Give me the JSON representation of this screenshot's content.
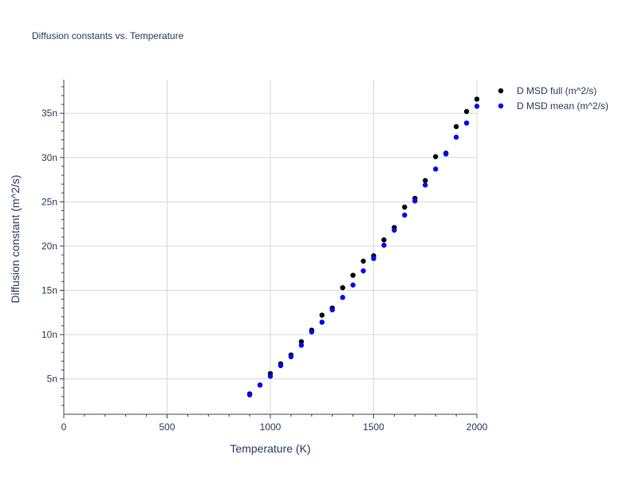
{
  "chart_data": {
    "type": "scatter",
    "title": "Diffusion constants vs. Temperature",
    "xlabel": "Temperature (K)",
    "ylabel": "Diffusion constant (m^2/s)",
    "xlim": [
      0,
      2000
    ],
    "ylim": [
      1,
      38.8
    ],
    "x_ticks": [
      0,
      500,
      1000,
      1500,
      2000
    ],
    "x_tick_labels": [
      "0",
      "500",
      "1000",
      "1500",
      "2000"
    ],
    "y_ticks": [
      5,
      10,
      15,
      20,
      25,
      30,
      35
    ],
    "y_tick_labels": [
      "5n",
      "10n",
      "15n",
      "20n",
      "25n",
      "30n",
      "35n"
    ],
    "y_unit_note": "values in units of 1e-9 m^2/s",
    "grid": true,
    "legend_position": "top-right",
    "series": [
      {
        "name": "D MSD full (m^2/s)",
        "color": "#000000",
        "x": [
          900,
          950,
          1000,
          1050,
          1100,
          1150,
          1200,
          1250,
          1300,
          1350,
          1400,
          1450,
          1500,
          1550,
          1600,
          1650,
          1700,
          1750,
          1800,
          1850,
          1900,
          1950,
          2000
        ],
        "y": [
          3.3,
          4.3,
          5.6,
          6.7,
          7.7,
          9.2,
          10.5,
          12.2,
          13.0,
          15.3,
          16.7,
          18.3,
          18.9,
          20.7,
          22.1,
          24.4,
          25.4,
          27.4,
          30.1,
          30.5,
          33.5,
          35.2,
          36.6
        ]
      },
      {
        "name": "D MSD mean (m^2/s)",
        "color": "#0000ff",
        "x": [
          900,
          950,
          1000,
          1050,
          1100,
          1150,
          1200,
          1250,
          1300,
          1350,
          1400,
          1450,
          1500,
          1550,
          1600,
          1650,
          1700,
          1750,
          1800,
          1850,
          1900,
          1950,
          2000
        ],
        "y": [
          3.2,
          4.3,
          5.3,
          6.5,
          7.5,
          8.8,
          10.3,
          11.4,
          12.8,
          14.2,
          15.6,
          17.2,
          18.6,
          20.1,
          21.8,
          23.5,
          25.1,
          26.9,
          28.7,
          30.4,
          32.3,
          33.9,
          35.8
        ]
      }
    ]
  }
}
